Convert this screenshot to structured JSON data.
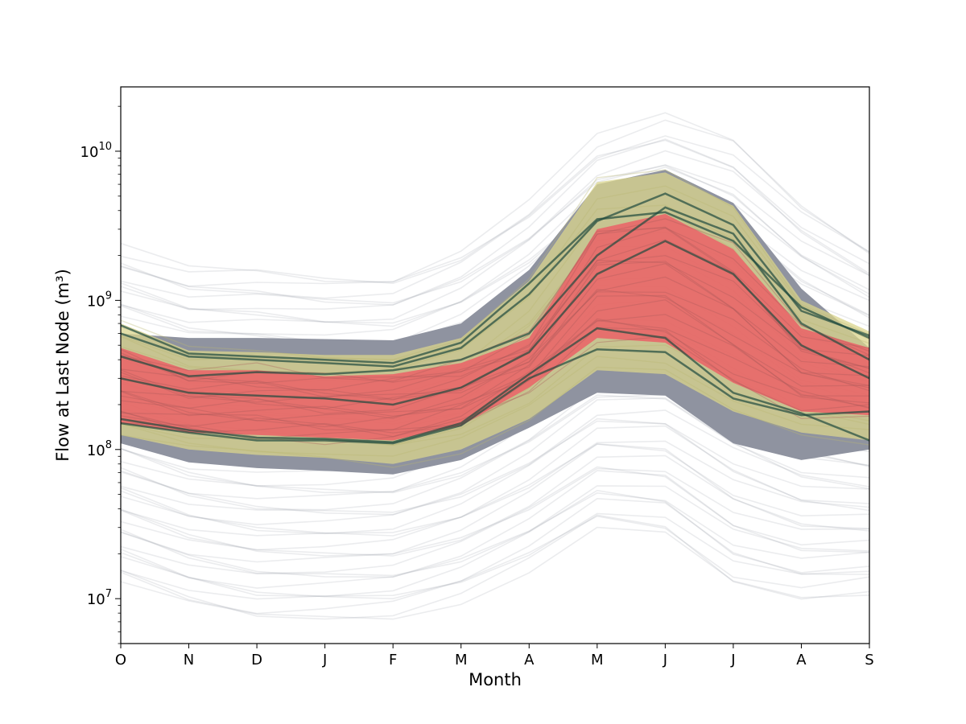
{
  "chart_data": {
    "type": "line",
    "title": "",
    "xlabel": "Month",
    "ylabel": "Flow at Last Node (m³)",
    "yscale": "log",
    "ylim": [
      5000000,
      27000000000
    ],
    "categories": [
      "O",
      "N",
      "D",
      "J",
      "F",
      "M",
      "A",
      "M",
      "J",
      "J",
      "A",
      "S"
    ],
    "y_ticks": [
      {
        "value": 10000000,
        "mantissa": "10",
        "exponent": "7"
      },
      {
        "value": 100000000,
        "mantissa": "10",
        "exponent": "8"
      },
      {
        "value": 1000000000,
        "mantissa": "10",
        "exponent": "9"
      },
      {
        "value": 10000000000,
        "mantissa": "10",
        "exponent": "10"
      }
    ],
    "grid": false,
    "colors": {
      "ensemble": "#8f93a0",
      "outer_band": "#d9d48c",
      "inner_band": "#e8686a",
      "dark_trace": "#1f4a3e"
    },
    "bands": [
      {
        "role": "ensemble-core",
        "color": "#8f93a0",
        "upper": [
          600000000,
          560000000,
          560000000,
          550000000,
          540000000,
          700000000,
          1600000000,
          6000000000,
          7500000000,
          4500000000,
          1200000000,
          480000000
        ],
        "lower": [
          110000000,
          82000000,
          75000000,
          72000000,
          68000000,
          85000000,
          140000000,
          240000000,
          230000000,
          110000000,
          85000000,
          100000000
        ]
      },
      {
        "role": "ensemble-spread",
        "color": "#8f93a0",
        "upper": [
          2200000000,
          1600000000,
          1600000000,
          1450000000,
          1450000000,
          2200000000,
          4500000000,
          12000000000,
          17000000000,
          12000000000,
          4500000000,
          2300000000
        ],
        "lower": [
          13000000,
          9000000,
          7200000,
          7300000,
          7600000,
          10000000,
          16000000,
          30000000,
          26000000,
          12000000,
          9800000,
          11000000
        ]
      },
      {
        "role": "outer-band",
        "color": "#d9d48c",
        "upper": [
          700000000,
          460000000,
          450000000,
          430000000,
          430000000,
          560000000,
          1350000000,
          6200000000,
          7200000000,
          4300000000,
          1000000000,
          620000000
        ],
        "lower": [
          125000000,
          100000000,
          92000000,
          88000000,
          80000000,
          100000000,
          160000000,
          340000000,
          320000000,
          180000000,
          130000000,
          115000000
        ]
      },
      {
        "role": "inner-band",
        "color": "#e8686a",
        "upper": [
          480000000,
          340000000,
          340000000,
          310000000,
          320000000,
          380000000,
          560000000,
          3000000000,
          3800000000,
          2200000000,
          650000000,
          480000000
        ],
        "lower": [
          150000000,
          130000000,
          125000000,
          120000000,
          115000000,
          145000000,
          260000000,
          560000000,
          520000000,
          280000000,
          180000000,
          170000000
        ]
      }
    ],
    "highlight_traces": [
      {
        "values": [
          680000000,
          440000000,
          420000000,
          400000000,
          380000000,
          520000000,
          1300000000,
          3500000000,
          3900000000,
          2500000000,
          900000000,
          560000000
        ]
      },
      {
        "values": [
          600000000,
          420000000,
          400000000,
          380000000,
          360000000,
          480000000,
          1100000000,
          3400000000,
          5200000000,
          3200000000,
          850000000,
          580000000
        ]
      },
      {
        "values": [
          150000000,
          130000000,
          115000000,
          115000000,
          110000000,
          145000000,
          300000000,
          470000000,
          450000000,
          220000000,
          170000000,
          180000000
        ]
      },
      {
        "values": [
          160000000,
          135000000,
          120000000,
          118000000,
          112000000,
          150000000,
          320000000,
          650000000,
          560000000,
          240000000,
          175000000,
          115000000
        ]
      },
      {
        "values": [
          420000000,
          310000000,
          330000000,
          320000000,
          340000000,
          400000000,
          600000000,
          2000000000,
          4200000000,
          2800000000,
          700000000,
          400000000
        ]
      },
      {
        "values": [
          300000000,
          240000000,
          230000000,
          220000000,
          200000000,
          260000000,
          450000000,
          1500000000,
          2500000000,
          1500000000,
          500000000,
          300000000
        ]
      }
    ]
  }
}
